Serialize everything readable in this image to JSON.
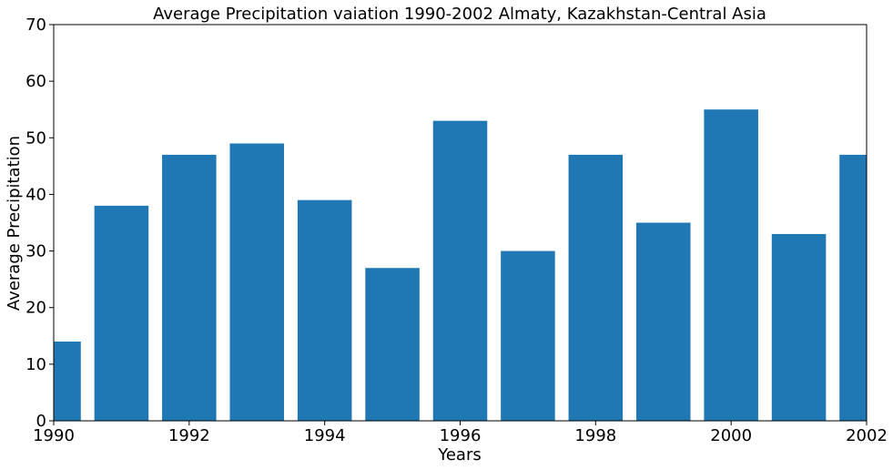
{
  "chart_data": {
    "type": "bar",
    "title": "Average Precipitation vaiation 1990-2002 Almaty, Kazakhstan-Central Asia",
    "xlabel": "Years",
    "ylabel": "Average Precipitation",
    "x": [
      1990,
      1991,
      1992,
      1993,
      1994,
      1995,
      1996,
      1997,
      1998,
      1999,
      2000,
      2001,
      2002
    ],
    "values": [
      14,
      38,
      47,
      49,
      39,
      27,
      53,
      30,
      47,
      35,
      55,
      33,
      47
    ],
    "xlim": [
      1990,
      2002
    ],
    "ylim": [
      0,
      70
    ],
    "xticks": [
      "1990",
      "1992",
      "1994",
      "1996",
      "1998",
      "2000",
      "2002"
    ],
    "yticks": [
      "0",
      "10",
      "20",
      "30",
      "40",
      "50",
      "60",
      "70"
    ],
    "bar_color": "#1f77b4",
    "grid": false,
    "legend": "none"
  }
}
